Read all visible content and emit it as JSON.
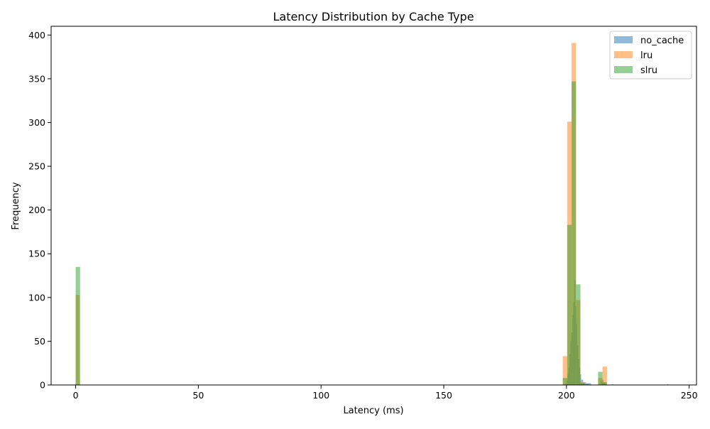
{
  "chart_data": {
    "type": "histogram",
    "title": "Latency Distribution by Cache Type",
    "xlabel": "Latency (ms)",
    "ylabel": "Frequency",
    "xlim": [
      -10,
      253
    ],
    "ylim": [
      0,
      410
    ],
    "xticks": [
      0,
      50,
      100,
      150,
      200,
      250
    ],
    "yticks": [
      0,
      50,
      100,
      150,
      200,
      250,
      300,
      350,
      400
    ],
    "grid": false,
    "legend_position": "upper right",
    "series": [
      {
        "name": "no_cache",
        "color": "#1f77b4",
        "opacity": 0.5,
        "bins": [
          {
            "x0": 200.0,
            "x1": 200.4,
            "value": 5
          },
          {
            "x0": 200.4,
            "x1": 200.8,
            "value": 12
          },
          {
            "x0": 200.8,
            "x1": 201.2,
            "value": 20
          },
          {
            "x0": 201.2,
            "x1": 201.6,
            "value": 35
          },
          {
            "x0": 201.6,
            "x1": 202.0,
            "value": 50
          },
          {
            "x0": 202.0,
            "x1": 202.4,
            "value": 60
          },
          {
            "x0": 202.4,
            "x1": 202.8,
            "value": 80
          },
          {
            "x0": 202.8,
            "x1": 203.2,
            "value": 95
          },
          {
            "x0": 203.2,
            "x1": 203.6,
            "value": 120
          },
          {
            "x0": 203.6,
            "x1": 204.0,
            "value": 90
          },
          {
            "x0": 204.0,
            "x1": 204.4,
            "value": 70
          },
          {
            "x0": 204.4,
            "x1": 204.8,
            "value": 45
          },
          {
            "x0": 204.8,
            "x1": 205.2,
            "value": 30
          },
          {
            "x0": 205.2,
            "x1": 205.6,
            "value": 20
          },
          {
            "x0": 205.6,
            "x1": 206.0,
            "value": 12
          },
          {
            "x0": 206.0,
            "x1": 206.8,
            "value": 6
          },
          {
            "x0": 206.8,
            "x1": 208.0,
            "value": 3
          },
          {
            "x0": 208.0,
            "x1": 210.0,
            "value": 2
          },
          {
            "x0": 214.0,
            "x1": 214.6,
            "value": 4
          },
          {
            "x0": 214.6,
            "x1": 215.2,
            "value": 6
          },
          {
            "x0": 215.2,
            "x1": 216.0,
            "value": 3
          },
          {
            "x0": 218.5,
            "x1": 219.0,
            "value": 1
          },
          {
            "x0": 241.0,
            "x1": 241.5,
            "value": 1
          }
        ]
      },
      {
        "name": "lru",
        "color": "#ff7f0e",
        "opacity": 0.5,
        "bins": [
          {
            "x0": 0.0,
            "x1": 1.7,
            "value": 103
          },
          {
            "x0": 198.5,
            "x1": 200.3,
            "value": 33
          },
          {
            "x0": 200.3,
            "x1": 202.1,
            "value": 301
          },
          {
            "x0": 202.1,
            "x1": 203.9,
            "value": 391
          },
          {
            "x0": 203.9,
            "x1": 205.7,
            "value": 97
          },
          {
            "x0": 205.7,
            "x1": 207.5,
            "value": 3
          },
          {
            "x0": 207.5,
            "x1": 209.3,
            "value": 1
          },
          {
            "x0": 212.9,
            "x1": 214.7,
            "value": 8
          },
          {
            "x0": 214.7,
            "x1": 216.5,
            "value": 21
          }
        ]
      },
      {
        "name": "slru",
        "color": "#2ca02c",
        "opacity": 0.5,
        "bins": [
          {
            "x0": 0.0,
            "x1": 1.8,
            "value": 135
          },
          {
            "x0": 198.5,
            "x1": 200.3,
            "value": 8
          },
          {
            "x0": 200.3,
            "x1": 202.1,
            "value": 183
          },
          {
            "x0": 202.1,
            "x1": 203.9,
            "value": 347
          },
          {
            "x0": 203.9,
            "x1": 205.7,
            "value": 115
          },
          {
            "x0": 205.7,
            "x1": 207.5,
            "value": 2
          },
          {
            "x0": 207.5,
            "x1": 209.3,
            "value": 1
          },
          {
            "x0": 212.9,
            "x1": 214.7,
            "value": 15
          },
          {
            "x0": 214.7,
            "x1": 216.5,
            "value": 3
          }
        ]
      }
    ]
  }
}
